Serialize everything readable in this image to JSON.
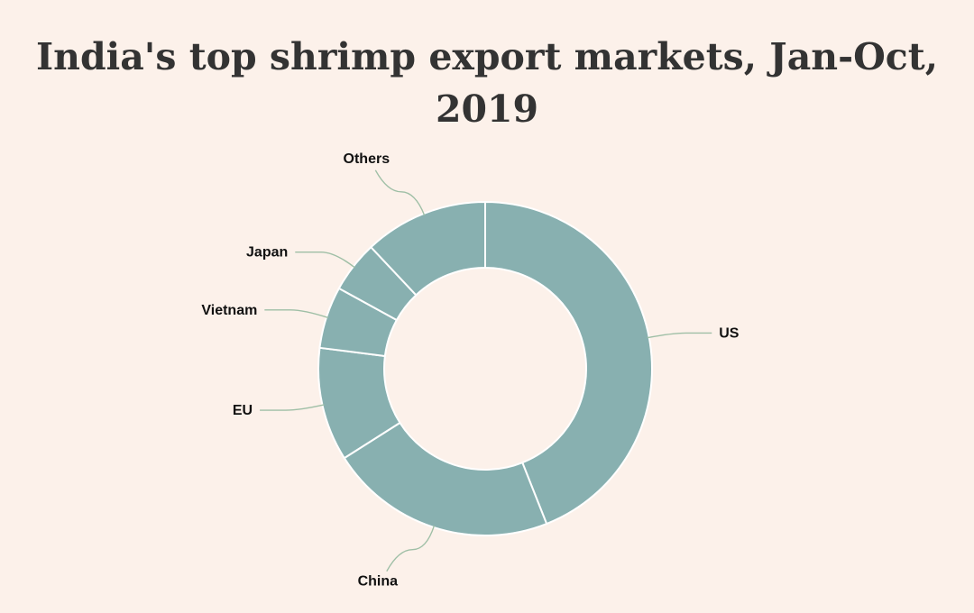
{
  "chart_data": {
    "type": "pie",
    "variant": "donut",
    "title": "India's top shrimp export markets, Jan-Oct, 2019",
    "categories": [
      "US",
      "China",
      "EU",
      "Vietnam",
      "Japan",
      "Others"
    ],
    "values": [
      44,
      22,
      11,
      6,
      5,
      12
    ],
    "colors": {
      "slice_fill": "#88b0b0",
      "slice_border": "#ffffff",
      "leader_line": "#9fbfa6",
      "background": "#fcf1ea",
      "title": "#333333"
    }
  }
}
